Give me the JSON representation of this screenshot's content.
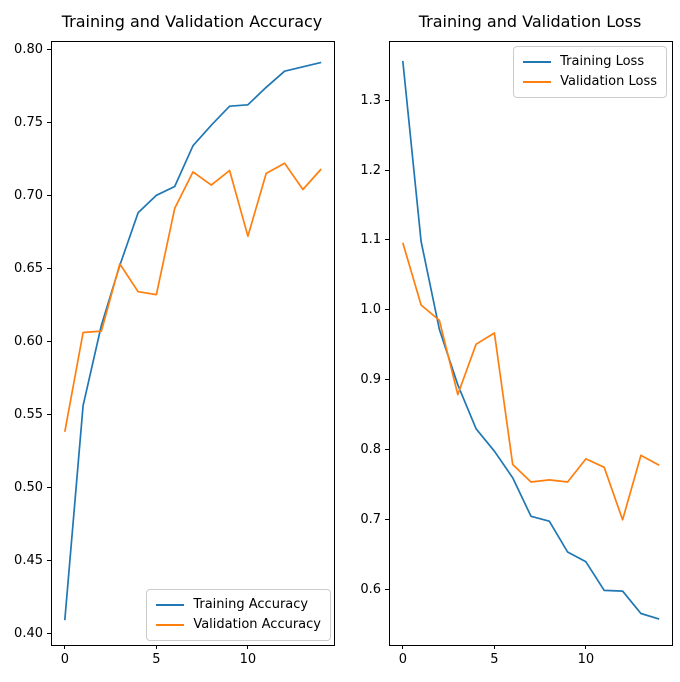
{
  "figure": {
    "background": "#ffffff",
    "text_color": "#000000",
    "spine_color": "#000000",
    "legend_border_color": "#cccccc"
  },
  "chart_data": [
    {
      "id": "accuracy",
      "type": "line",
      "title": "Training and Validation Accuracy",
      "x": [
        0,
        1,
        2,
        3,
        4,
        5,
        6,
        7,
        8,
        9,
        10,
        11,
        12,
        13,
        14
      ],
      "series": [
        {
          "name": "Training Accuracy",
          "color": "#1f77b4",
          "values": [
            0.409,
            0.556,
            0.611,
            0.652,
            0.688,
            0.7,
            0.706,
            0.734,
            0.748,
            0.761,
            0.762,
            0.774,
            0.785,
            0.788,
            0.791
          ]
        },
        {
          "name": "Validation Accuracy",
          "color": "#ff7f0e",
          "values": [
            0.538,
            0.606,
            0.607,
            0.653,
            0.634,
            0.632,
            0.691,
            0.716,
            0.707,
            0.717,
            0.672,
            0.715,
            0.722,
            0.704,
            0.718
          ]
        }
      ],
      "xlim": [
        -0.7,
        14.7
      ],
      "ylim": [
        0.392,
        0.805
      ],
      "xticks": [
        {
          "value": 0,
          "label": "0"
        },
        {
          "value": 5,
          "label": "5"
        },
        {
          "value": 10,
          "label": "10"
        }
      ],
      "yticks": [
        {
          "value": 0.4,
          "label": "0.40"
        },
        {
          "value": 0.45,
          "label": "0.45"
        },
        {
          "value": 0.5,
          "label": "0.50"
        },
        {
          "value": 0.55,
          "label": "0.55"
        },
        {
          "value": 0.6,
          "label": "0.60"
        },
        {
          "value": 0.65,
          "label": "0.65"
        },
        {
          "value": 0.7,
          "label": "0.70"
        },
        {
          "value": 0.75,
          "label": "0.75"
        },
        {
          "value": 0.8,
          "label": "0.80"
        }
      ],
      "legend_position": "lower-right",
      "grid": false
    },
    {
      "id": "loss",
      "type": "line",
      "title": "Training and Validation Loss",
      "x": [
        0,
        1,
        2,
        3,
        4,
        5,
        6,
        7,
        8,
        9,
        10,
        11,
        12,
        13,
        14
      ],
      "series": [
        {
          "name": "Training Loss",
          "color": "#1f77b4",
          "values": [
            1.356,
            1.098,
            0.972,
            0.893,
            0.83,
            0.798,
            0.76,
            0.705,
            0.698,
            0.654,
            0.64,
            0.599,
            0.598,
            0.566,
            0.558
          ]
        },
        {
          "name": "Validation Loss",
          "color": "#ff7f0e",
          "values": [
            1.096,
            1.007,
            0.985,
            0.879,
            0.951,
            0.967,
            0.779,
            0.754,
            0.757,
            0.754,
            0.787,
            0.775,
            0.7,
            0.792,
            0.778
          ]
        }
      ],
      "xlim": [
        -0.7,
        14.7
      ],
      "ylim": [
        0.521,
        1.383
      ],
      "xticks": [
        {
          "value": 0,
          "label": "0"
        },
        {
          "value": 5,
          "label": "5"
        },
        {
          "value": 10,
          "label": "10"
        }
      ],
      "yticks": [
        {
          "value": 0.6,
          "label": "0.6"
        },
        {
          "value": 0.7,
          "label": "0.7"
        },
        {
          "value": 0.8,
          "label": "0.8"
        },
        {
          "value": 0.9,
          "label": "0.9"
        },
        {
          "value": 1.0,
          "label": "1.0"
        },
        {
          "value": 1.1,
          "label": "1.1"
        },
        {
          "value": 1.2,
          "label": "1.2"
        },
        {
          "value": 1.3,
          "label": "1.3"
        }
      ],
      "legend_position": "upper-right",
      "grid": false
    }
  ]
}
